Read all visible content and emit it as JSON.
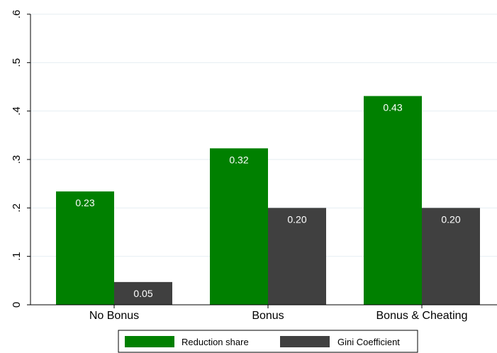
{
  "chart_data": {
    "type": "bar",
    "categories": [
      "No Bonus",
      "Bonus",
      "Bonus & Cheating"
    ],
    "series": [
      {
        "name": "Reduction share",
        "color": "#008000",
        "values": [
          0.234,
          0.323,
          0.431
        ],
        "labels": [
          "0.23",
          "0.32",
          "0.43"
        ]
      },
      {
        "name": "Gini Coefficient",
        "color": "#404040",
        "values": [
          0.047,
          0.2,
          0.2
        ],
        "labels": [
          "0.05",
          "0.20",
          "0.20"
        ]
      }
    ],
    "yticks": [
      0,
      0.1,
      0.2,
      0.3,
      0.4,
      0.5,
      0.6
    ],
    "ytick_labels": [
      "0",
      ".1",
      ".2",
      ".3",
      ".4",
      ".5",
      ".6"
    ],
    "ylim": [
      0,
      0.6
    ],
    "grid": true,
    "legend_position": "bottom",
    "title": "",
    "xlabel": "",
    "ylabel": ""
  }
}
